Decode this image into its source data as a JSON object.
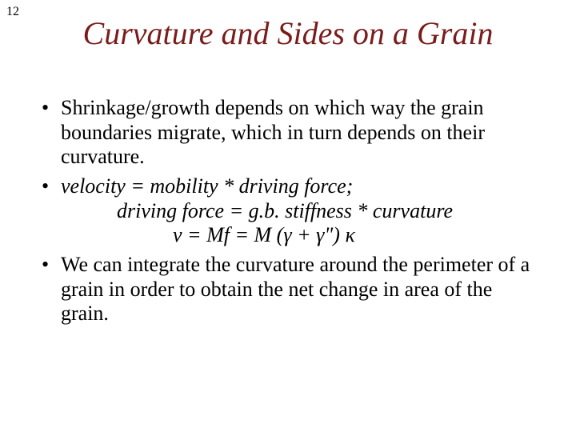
{
  "page_number": "12",
  "title": "Curvature and Sides on a Grain",
  "colors": {
    "title": "#7a1c1c",
    "text": "#000000",
    "background": "#ffffff"
  },
  "typography": {
    "title_fontsize": 40,
    "title_style": "italic",
    "body_fontsize": 26,
    "pagenum_fontsize": 16,
    "font_family": "Times New Roman"
  },
  "bullets": {
    "b1": "Shrinkage/growth depends on which way the grain boundaries migrate, which in turn depends on their curvature.",
    "b2_line1": "velocity = mobility * driving force;",
    "b2_line2": "driving force = g.b. stiffness * curvature",
    "b2_eq_prefix": "v = Mf = M (",
    "b2_eq_g1": "γ",
    "b2_eq_plus": " + ",
    "b2_eq_g2": "γ",
    "b2_eq_dprime": "\")",
    "b2_eq_space": " ",
    "b2_eq_kappa": "κ",
    "b3": "We can integrate the curvature around the perimeter of a grain in order to obtain the net change in area of the grain."
  }
}
